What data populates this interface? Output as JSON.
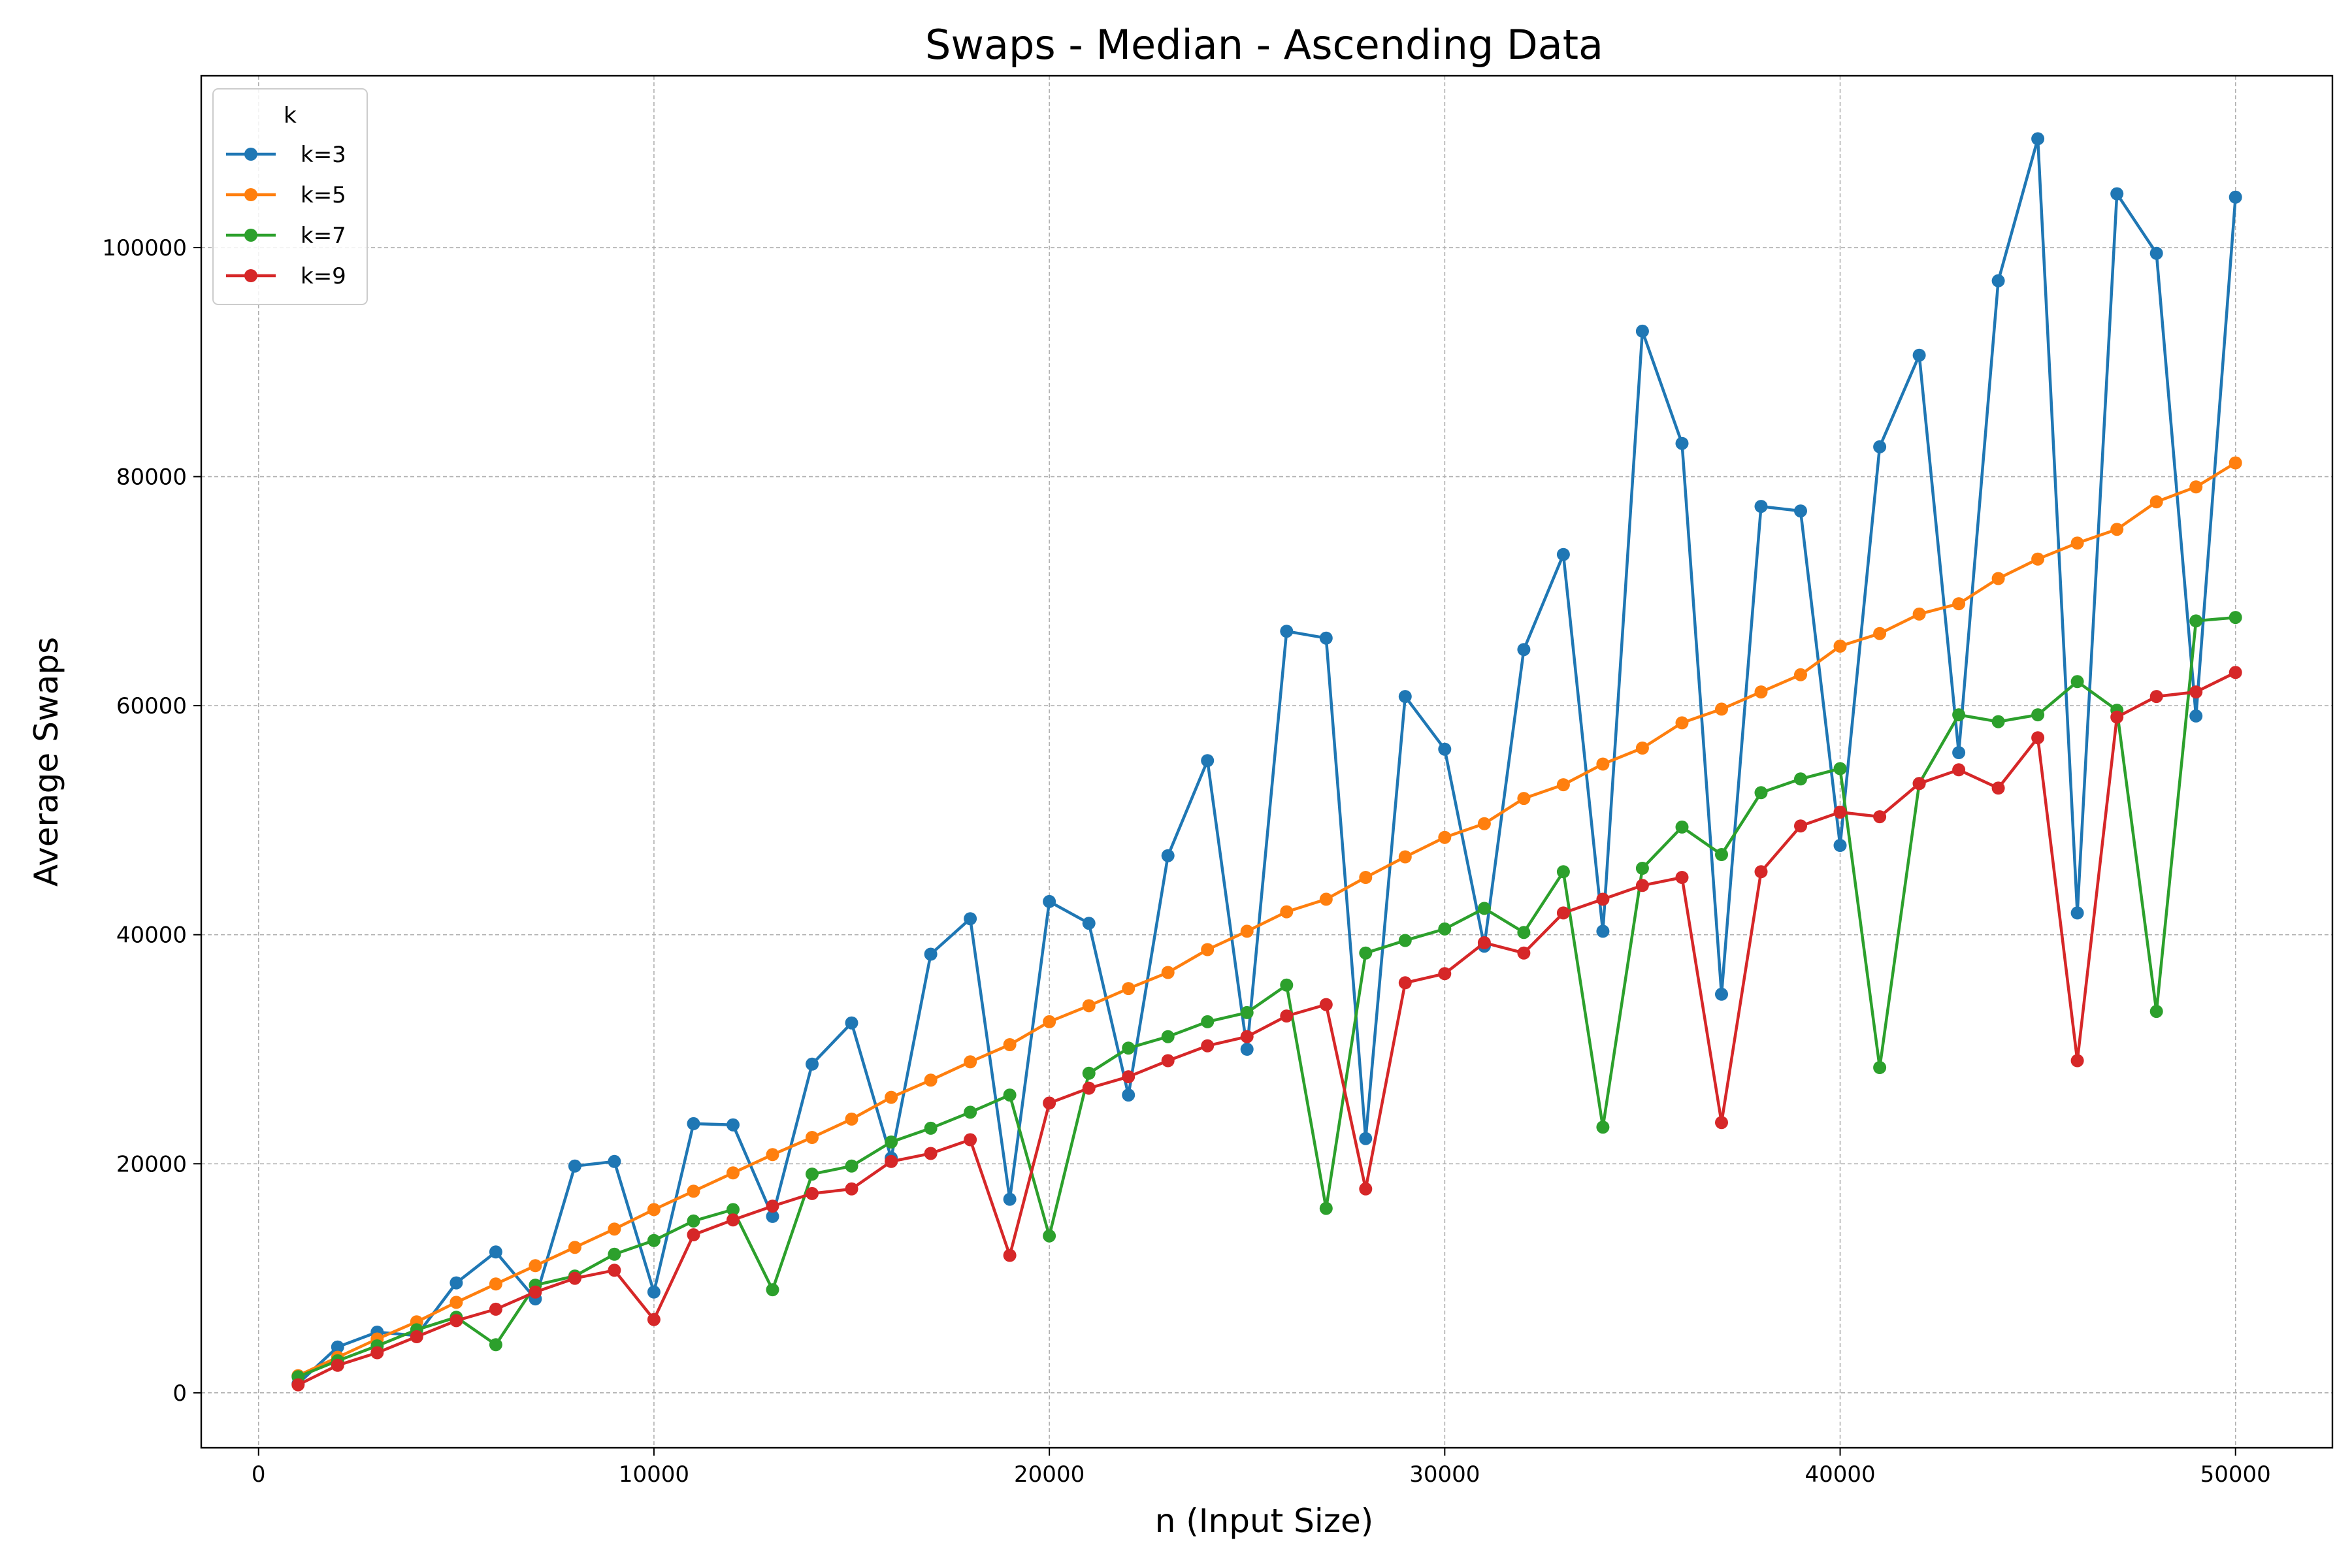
{
  "chart_data": {
    "type": "line",
    "title": "Swaps - Median - Ascending Data",
    "xlabel": "n (Input Size)",
    "ylabel": "Average Swaps",
    "xlim": [
      -1450,
      52450
    ],
    "ylim": [
      -4800,
      115000
    ],
    "xticks": [
      0,
      10000,
      20000,
      30000,
      40000,
      50000
    ],
    "yticks": [
      0,
      20000,
      40000,
      60000,
      80000,
      100000
    ],
    "grid": true,
    "legend": {
      "title": "k",
      "placement": "top-left"
    },
    "x": [
      1000,
      2000,
      3000,
      4000,
      5000,
      6000,
      7000,
      8000,
      9000,
      10000,
      11000,
      12000,
      13000,
      14000,
      15000,
      16000,
      17000,
      18000,
      19000,
      20000,
      21000,
      22000,
      23000,
      24000,
      25000,
      26000,
      27000,
      28000,
      29000,
      30000,
      31000,
      32000,
      33000,
      34000,
      35000,
      36000,
      37000,
      38000,
      39000,
      40000,
      41000,
      42000,
      43000,
      44000,
      45000,
      46000,
      47000,
      48000,
      49000,
      50000
    ],
    "series": [
      {
        "name": "k=3",
        "color": "#1f77b4",
        "values": [
          800,
          4000,
          5300,
          5000,
          9600,
          12300,
          8200,
          19800,
          20200,
          8800,
          23500,
          23400,
          15400,
          28700,
          32300,
          20500,
          38300,
          41400,
          16900,
          42900,
          41000,
          26000,
          46900,
          55200,
          30000,
          66500,
          65900,
          22200,
          60800,
          56200,
          39000,
          64900,
          73200,
          40300,
          92700,
          82900,
          34800,
          77400,
          77000,
          47800,
          82600,
          90600,
          55900,
          97100,
          109500,
          41900,
          104700,
          99500,
          59100,
          104400
        ]
      },
      {
        "name": "k=5",
        "color": "#ff7f0e",
        "values": [
          1500,
          3100,
          4700,
          6200,
          7900,
          9500,
          11100,
          12700,
          14300,
          16000,
          17600,
          19200,
          20800,
          22300,
          23900,
          25800,
          27300,
          28900,
          30400,
          32400,
          33800,
          35300,
          36700,
          38700,
          40300,
          42000,
          43100,
          45000,
          46800,
          48500,
          49700,
          51900,
          53100,
          54900,
          56300,
          58500,
          59700,
          61200,
          62700,
          65200,
          66300,
          68000,
          68900,
          71100,
          72800,
          74200,
          75400,
          77800,
          79100,
          81200
        ]
      },
      {
        "name": "k=7",
        "color": "#2ca02c",
        "values": [
          1400,
          2800,
          4100,
          5500,
          6600,
          4200,
          9400,
          10200,
          12100,
          13300,
          15000,
          16000,
          9000,
          19100,
          19800,
          21900,
          23100,
          24500,
          26000,
          13700,
          27900,
          30100,
          31100,
          32400,
          33200,
          35600,
          16100,
          38400,
          39500,
          40500,
          42300,
          40200,
          45500,
          23200,
          45800,
          49400,
          47000,
          52400,
          53600,
          54500,
          28400,
          53200,
          59200,
          58600,
          59200,
          62100,
          59600,
          33300,
          67400,
          67700
        ]
      },
      {
        "name": "k=9",
        "color": "#d62728",
        "values": [
          700,
          2400,
          3500,
          4900,
          6300,
          7300,
          8800,
          10000,
          10700,
          6400,
          13800,
          15100,
          16300,
          17400,
          17800,
          20200,
          20900,
          22100,
          12000,
          25300,
          26600,
          27600,
          29000,
          30300,
          31100,
          32900,
          33900,
          17800,
          35800,
          36600,
          39300,
          38400,
          41900,
          43100,
          44300,
          45000,
          23600,
          45500,
          49500,
          50700,
          50300,
          53200,
          54400,
          52800,
          57200,
          29000,
          59000,
          60800,
          61200,
          62900
        ]
      }
    ]
  }
}
